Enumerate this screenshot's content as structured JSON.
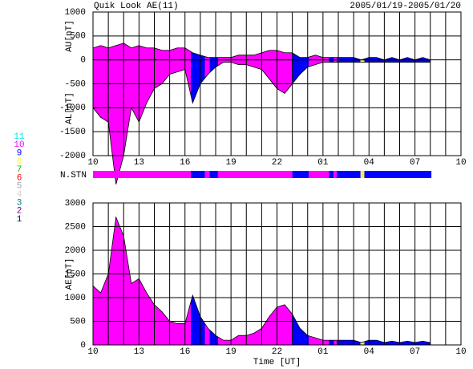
{
  "header": {
    "title": "Quik Look AE(11)",
    "date_range": "2005/01/19-2005/01/20"
  },
  "station_legend": [
    {
      "label": "11",
      "color": "#00e6e6"
    },
    {
      "label": "10",
      "color": "#ff00ff"
    },
    {
      "label": "9",
      "color": "#0000ff"
    },
    {
      "label": "8",
      "color": "#f5f050"
    },
    {
      "label": "7",
      "color": "#00c000"
    },
    {
      "label": "6",
      "color": "#ff0000"
    },
    {
      "label": "5",
      "color": "#a0a0a0"
    },
    {
      "label": "4",
      "color": "#d0d0d0"
    },
    {
      "label": "3",
      "color": "#008080"
    },
    {
      "label": "2",
      "color": "#800080"
    },
    {
      "label": "1",
      "color": "#000080"
    }
  ],
  "chart_data": [
    {
      "type": "area",
      "ylabels": [
        "AU[nT]",
        "AL[nT]"
      ],
      "xlim": [
        10,
        34
      ],
      "xticks": [
        10,
        13,
        16,
        19,
        22,
        {
          "value": 25,
          "label": "01"
        },
        {
          "value": 28,
          "label": "04"
        },
        {
          "value": 31,
          "label": "07"
        },
        {
          "value": 34,
          "label": "10"
        }
      ],
      "x_gridlines": [
        10,
        11,
        12,
        13,
        14,
        15,
        16,
        17,
        18,
        19,
        20,
        21,
        22,
        23,
        24,
        25,
        26,
        27,
        28,
        29,
        30,
        31,
        32,
        33,
        34
      ],
      "ylim": [
        -2000,
        1000
      ],
      "yticks": [
        1000,
        500,
        0,
        -500,
        -1000,
        -1500,
        -2000
      ],
      "x": [
        10,
        10.5,
        11,
        11.5,
        12,
        12.5,
        13,
        13.5,
        14,
        14.5,
        15,
        15.5,
        16,
        16.5,
        17,
        17.5,
        18,
        18.5,
        19,
        19.5,
        20,
        20.5,
        21,
        21.5,
        22,
        22.5,
        23,
        23.5,
        24,
        24.5,
        25,
        25.5,
        26,
        26.5,
        27,
        27.5,
        28,
        28.5,
        29,
        29.5,
        30,
        30.5,
        31,
        31.5,
        32
      ],
      "series": [
        {
          "values": [
            250,
            300,
            250,
            300,
            350,
            250,
            300,
            250,
            250,
            200,
            200,
            250,
            250,
            150,
            100,
            50,
            50,
            50,
            50,
            100,
            100,
            100,
            150,
            200,
            200,
            150,
            150,
            50,
            50,
            100,
            50,
            50,
            50,
            50,
            50,
            0,
            50,
            50,
            0,
            50,
            0,
            50,
            0,
            50,
            0
          ]
        },
        {
          "values": [
            -1000,
            -1200,
            -1300,
            -2600,
            -2000,
            -1000,
            -1300,
            -900,
            -600,
            -500,
            -300,
            -250,
            -200,
            -900,
            -500,
            -300,
            -150,
            -50,
            -50,
            -100,
            -100,
            -150,
            -200,
            -400,
            -600,
            -700,
            -500,
            -300,
            -150,
            -100,
            -50,
            -50,
            -50,
            -50,
            -50,
            -50,
            -50,
            -50,
            -50,
            -50,
            -50,
            -50,
            -50,
            -50,
            -50
          ]
        }
      ]
    },
    {
      "type": "strip",
      "label": "N.STN",
      "segments": [
        {
          "start": 10,
          "end": 16.38,
          "stations": 10
        },
        {
          "start": 16.38,
          "end": 17.3,
          "stations": 9
        },
        {
          "start": 17.3,
          "end": 17.6,
          "stations": 10
        },
        {
          "start": 17.6,
          "end": 18.15,
          "stations": 9
        },
        {
          "start": 18.15,
          "end": 23.0,
          "stations": 10
        },
        {
          "start": 23.0,
          "end": 24.07,
          "stations": 9
        },
        {
          "start": 24.07,
          "end": 25.4,
          "stations": 10
        },
        {
          "start": 25.4,
          "end": 25.7,
          "stations": 9
        },
        {
          "start": 25.7,
          "end": 25.9,
          "stations": 10
        },
        {
          "start": 25.9,
          "end": 27.45,
          "stations": 9
        },
        {
          "start": 27.45,
          "end": 27.7,
          "stations": 8
        },
        {
          "start": 27.7,
          "end": 32.07,
          "stations": 9
        }
      ]
    },
    {
      "type": "area",
      "ylabels": [
        "AE[nT]"
      ],
      "xlabel": "Time [UT]",
      "xlim": [
        10,
        34
      ],
      "xticks": [
        10,
        13,
        16,
        19,
        22,
        {
          "value": 25,
          "label": "01"
        },
        {
          "value": 28,
          "label": "04"
        },
        {
          "value": 31,
          "label": "07"
        },
        {
          "value": 34,
          "label": "10"
        }
      ],
      "x_gridlines": [
        10,
        11,
        12,
        13,
        14,
        15,
        16,
        17,
        18,
        19,
        20,
        21,
        22,
        23,
        24,
        25,
        26,
        27,
        28,
        29,
        30,
        31,
        32,
        33,
        34
      ],
      "ylim": [
        0,
        3000
      ],
      "yticks": [
        0,
        500,
        1000,
        1500,
        2000,
        2500,
        3000
      ],
      "x": [
        10,
        10.5,
        11,
        11.5,
        12,
        12.5,
        13,
        13.5,
        14,
        14.5,
        15,
        15.5,
        16,
        16.5,
        17,
        17.5,
        18,
        18.5,
        19,
        19.5,
        20,
        20.5,
        21,
        21.5,
        22,
        22.5,
        23,
        23.5,
        24,
        24.5,
        25,
        25.5,
        26,
        26.5,
        27,
        27.5,
        28,
        28.5,
        29,
        29.5,
        30,
        30.5,
        31,
        31.5,
        32
      ],
      "series": [
        {
          "values": [
            1250,
            1100,
            1500,
            2700,
            2300,
            1300,
            1400,
            1100,
            850,
            700,
            500,
            450,
            450,
            1050,
            600,
            350,
            200,
            100,
            100,
            200,
            200,
            250,
            350,
            600,
            800,
            850,
            650,
            350,
            200,
            150,
            100,
            100,
            100,
            100,
            100,
            50,
            100,
            100,
            50,
            80,
            50,
            80,
            50,
            80,
            50
          ]
        }
      ]
    }
  ]
}
